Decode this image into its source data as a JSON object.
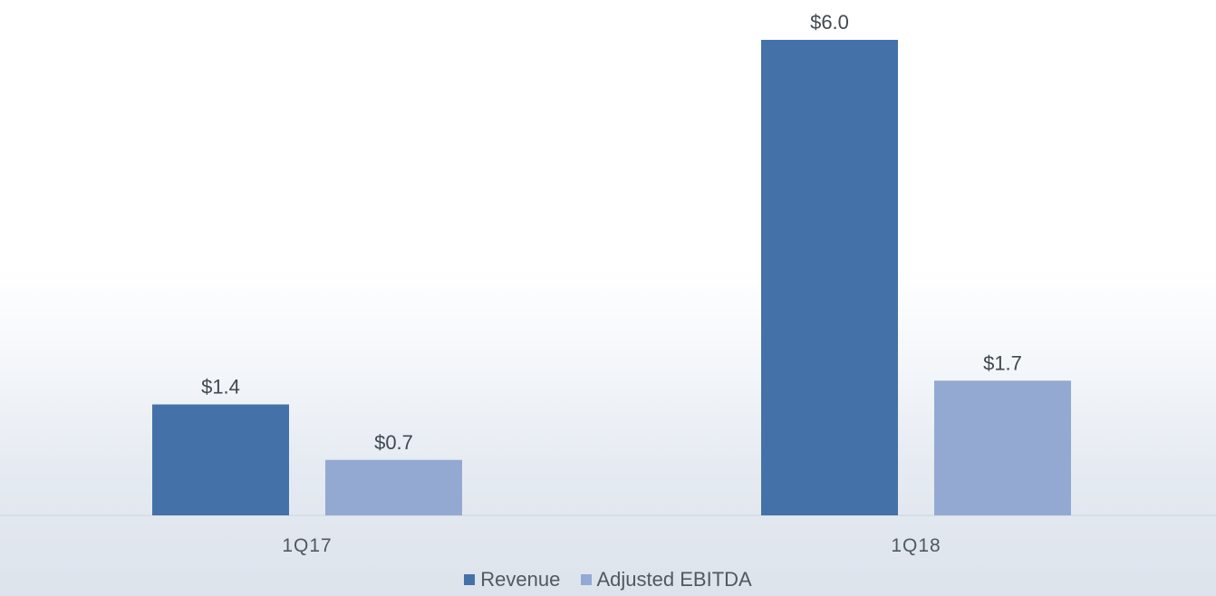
{
  "chart_data": {
    "type": "bar",
    "categories": [
      "1Q17",
      "1Q18"
    ],
    "series": [
      {
        "name": "Revenue",
        "values": [
          1.4,
          6.0
        ],
        "labels": [
          "$1.4",
          "$6.0"
        ],
        "color": "#4472a8"
      },
      {
        "name": "Adjusted EBITDA",
        "values": [
          0.7,
          1.7
        ],
        "labels": [
          "$0.7",
          "$1.7"
        ],
        "color": "#93a9d1"
      }
    ],
    "title": "",
    "xlabel": "",
    "ylabel": "",
    "ylim": [
      0,
      6.0
    ],
    "grid": false,
    "legend": "bottom"
  }
}
